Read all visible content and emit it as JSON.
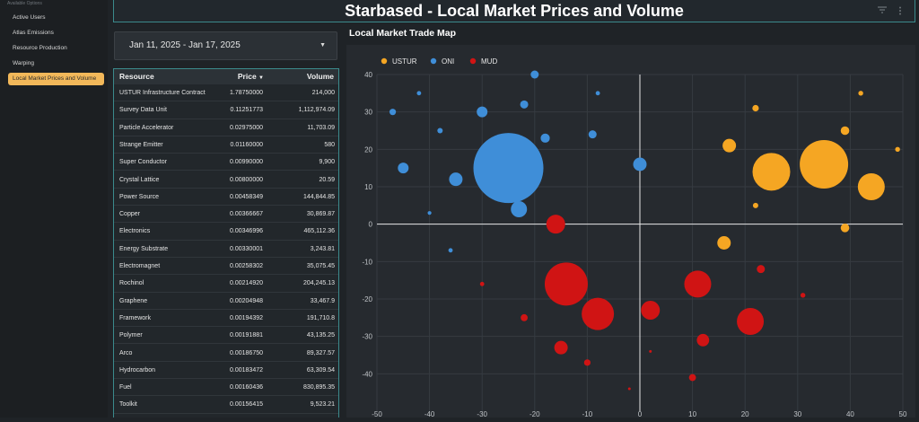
{
  "sidebar": {
    "section_label": "Available Options",
    "items": [
      {
        "label": "Active Users",
        "active": false
      },
      {
        "label": "Atlas Emissions",
        "active": false
      },
      {
        "label": "Resource Production",
        "active": false
      },
      {
        "label": "Warping",
        "active": false
      },
      {
        "label": "Local Market Prices and Volume",
        "active": true
      }
    ]
  },
  "header": {
    "title": "Starbased - Local Market Prices and Volume",
    "filter_icon": "filter-icon",
    "menu_icon": "more-vertical-icon"
  },
  "date_range": {
    "value": "Jan 11, 2025 - Jan 17, 2025",
    "icon": "caret-down-icon"
  },
  "table": {
    "columns": {
      "resource": "Resource",
      "price": "Price",
      "volume": "Volume"
    },
    "sort_icon": "sort-desc-icon",
    "rows": [
      {
        "resource": "USTUR Infrastructure Contract",
        "price": "1.78750000",
        "volume": "214,000"
      },
      {
        "resource": "Survey Data Unit",
        "price": "0.11251773",
        "volume": "1,112,974.09"
      },
      {
        "resource": "Particle Accelerator",
        "price": "0.02975000",
        "volume": "11,703.09"
      },
      {
        "resource": "Strange Emitter",
        "price": "0.01160000",
        "volume": "580"
      },
      {
        "resource": "Super Conductor",
        "price": "0.00990000",
        "volume": "9,900"
      },
      {
        "resource": "Crystal Lattice",
        "price": "0.00800000",
        "volume": "20.59"
      },
      {
        "resource": "Power Source",
        "price": "0.00458349",
        "volume": "144,844.85"
      },
      {
        "resource": "Copper",
        "price": "0.00366667",
        "volume": "30,869.87"
      },
      {
        "resource": "Electronics",
        "price": "0.00346996",
        "volume": "465,112.36"
      },
      {
        "resource": "Energy Substrate",
        "price": "0.00330001",
        "volume": "3,243.81"
      },
      {
        "resource": "Electromagnet",
        "price": "0.00258302",
        "volume": "35,075.45"
      },
      {
        "resource": "Rochinol",
        "price": "0.00214920",
        "volume": "204,245.13"
      },
      {
        "resource": "Graphene",
        "price": "0.00204948",
        "volume": "33,467.9"
      },
      {
        "resource": "Framework",
        "price": "0.00194392",
        "volume": "191,710.8"
      },
      {
        "resource": "Polymer",
        "price": "0.00191881",
        "volume": "43,135.25"
      },
      {
        "resource": "Arco",
        "price": "0.00186750",
        "volume": "89,327.57"
      },
      {
        "resource": "Hydrocarbon",
        "price": "0.00183472",
        "volume": "63,309.54"
      },
      {
        "resource": "Fuel",
        "price": "0.00160436",
        "volume": "830,895.35"
      },
      {
        "resource": "Toolkit",
        "price": "0.00156415",
        "volume": "9,523.21"
      }
    ]
  },
  "chart_title": "Local Market Trade Map",
  "chart_data": {
    "type": "scatter",
    "title": "Local Market Trade Map",
    "xlim": [
      -50,
      50
    ],
    "ylim": [
      -50,
      40
    ],
    "x_ticks": [
      -50,
      -40,
      -30,
      -20,
      -10,
      0,
      10,
      20,
      30,
      40,
      50
    ],
    "y_ticks": [
      40,
      30,
      20,
      10,
      0,
      -10,
      -20,
      -30,
      -40
    ],
    "grid": true,
    "legend_position": "top-left",
    "series": [
      {
        "name": "USTUR",
        "color": "#f5a623",
        "points": [
          {
            "x": 35,
            "y": 16,
            "size": 9
          },
          {
            "x": 25,
            "y": 14,
            "size": 7
          },
          {
            "x": 44,
            "y": 10,
            "size": 5
          },
          {
            "x": 17,
            "y": 21,
            "size": 2.5
          },
          {
            "x": 16,
            "y": -5,
            "size": 2.5
          },
          {
            "x": 39,
            "y": 25,
            "size": 1.6
          },
          {
            "x": 39,
            "y": -1,
            "size": 1.6
          },
          {
            "x": 22,
            "y": 31,
            "size": 1.2
          },
          {
            "x": 22,
            "y": 5,
            "size": 1.0
          },
          {
            "x": 42,
            "y": 35,
            "size": 0.9
          },
          {
            "x": 49,
            "y": 20,
            "size": 0.9
          }
        ]
      },
      {
        "name": "ONI",
        "color": "#3f8ed8",
        "points": [
          {
            "x": -25,
            "y": 15,
            "size": 13
          },
          {
            "x": 0,
            "y": 16,
            "size": 2.5
          },
          {
            "x": -23,
            "y": 4,
            "size": 3
          },
          {
            "x": -35,
            "y": 12,
            "size": 2.5
          },
          {
            "x": -45,
            "y": 15,
            "size": 2
          },
          {
            "x": -30,
            "y": 30,
            "size": 2
          },
          {
            "x": -20,
            "y": 40,
            "size": 1.5
          },
          {
            "x": -22,
            "y": 32,
            "size": 1.5
          },
          {
            "x": -18,
            "y": 23,
            "size": 1.7
          },
          {
            "x": -9,
            "y": 24,
            "size": 1.5
          },
          {
            "x": -47,
            "y": 30,
            "size": 1.2
          },
          {
            "x": -38,
            "y": 25,
            "size": 1.0
          },
          {
            "x": -42,
            "y": 35,
            "size": 0.8
          },
          {
            "x": -8,
            "y": 35,
            "size": 0.8
          },
          {
            "x": -40,
            "y": 3,
            "size": 0.7
          },
          {
            "x": -36,
            "y": -7,
            "size": 0.8
          }
        ]
      },
      {
        "name": "MUD",
        "color": "#d01414",
        "points": [
          {
            "x": -14,
            "y": -16,
            "size": 8
          },
          {
            "x": -8,
            "y": -24,
            "size": 6
          },
          {
            "x": 11,
            "y": -16,
            "size": 5
          },
          {
            "x": 21,
            "y": -26,
            "size": 5
          },
          {
            "x": -16,
            "y": 0,
            "size": 3.5
          },
          {
            "x": 2,
            "y": -23,
            "size": 3.5
          },
          {
            "x": -15,
            "y": -33,
            "size": 2.5
          },
          {
            "x": 12,
            "y": -31,
            "size": 2.3
          },
          {
            "x": 23,
            "y": -12,
            "size": 1.5
          },
          {
            "x": -22,
            "y": -25,
            "size": 1.3
          },
          {
            "x": -10,
            "y": -37,
            "size": 1.2
          },
          {
            "x": 10,
            "y": -41,
            "size": 1.3
          },
          {
            "x": 31,
            "y": -19,
            "size": 0.9
          },
          {
            "x": -30,
            "y": -16,
            "size": 0.8
          },
          {
            "x": 2,
            "y": -34,
            "size": 0.5
          },
          {
            "x": -2,
            "y": -44,
            "size": 0.5
          }
        ]
      }
    ]
  }
}
